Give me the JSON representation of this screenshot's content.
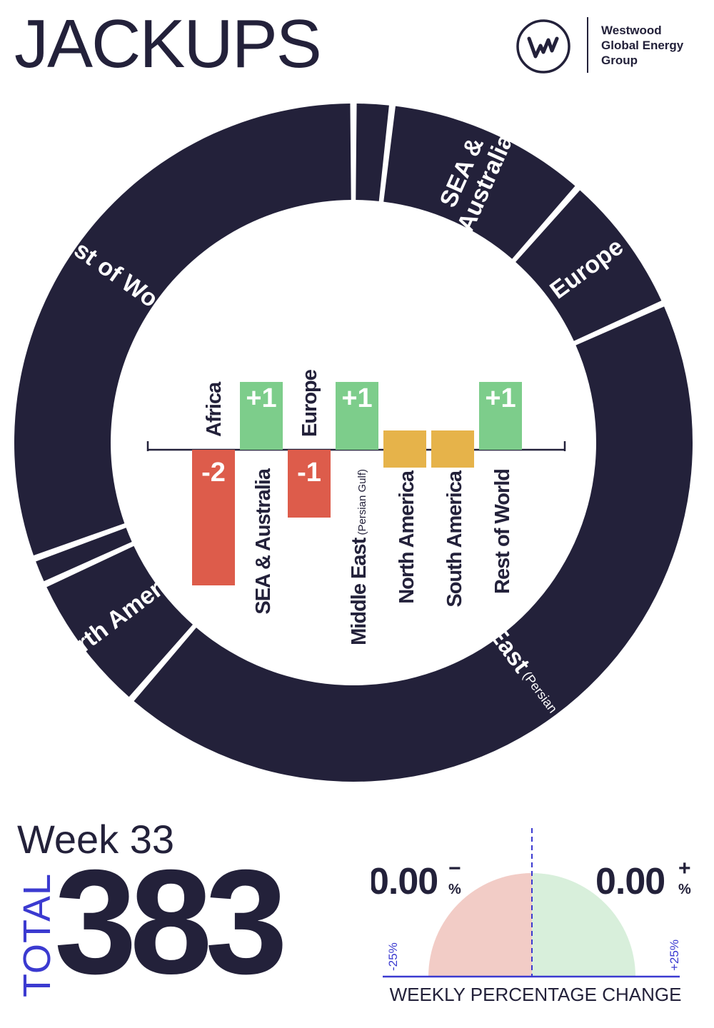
{
  "title": "JACKUPS",
  "brand": {
    "name_lines": [
      "Westwood",
      "Global Energy",
      "Group"
    ],
    "logo_icon": "w-monogram-circle-icon"
  },
  "week": "Week 33",
  "total_label": "TOTAL",
  "total_value": "383",
  "colors": {
    "navy": "#23213a",
    "increase": "#7dcd8b",
    "decrease": "#dd5c4b",
    "no_change": "#e6b34a",
    "accent": "#3b3ad0",
    "gauge_negative": "#f2ccc6",
    "gauge_positive": "#d8efdb"
  },
  "chart_data": [
    {
      "type": "pie",
      "variant": "donut",
      "description_of_regions": "Jackup rig count share by region",
      "segments": [
        {
          "label": "Africa",
          "value": 7
        },
        {
          "label": "SEA & Australia",
          "value": 37
        },
        {
          "label": "Europe",
          "value": 26
        },
        {
          "label": "Middle East",
          "sublabel": "(Persian Gulf & Red Sea)",
          "value": 165
        },
        {
          "label": "North America",
          "value": 26
        },
        {
          "label": "South America",
          "value": 5
        },
        {
          "label": "Rest of World",
          "value": 117
        }
      ]
    },
    {
      "type": "bar",
      "description": "Weekly change by region",
      "categories": [
        "Africa",
        "SEA & Australia",
        "Europe",
        "Middle East",
        "North America",
        "South America",
        "Rest of World"
      ],
      "category_sublabels": [
        "",
        "",
        "",
        "(Persian Gulf)",
        "",
        "",
        ""
      ],
      "values": [
        -2,
        1,
        -1,
        1,
        0,
        0,
        1
      ],
      "value_labels": [
        "-2",
        "+1",
        "-1",
        "+1",
        "",
        "",
        "+1"
      ]
    },
    {
      "type": "gauge",
      "label": "WEEKLY PERCENTAGE CHANGE",
      "negative": {
        "value": "0.00",
        "sign": "−",
        "unit": "%",
        "min_label": "-25%"
      },
      "positive": {
        "value": "0.00",
        "sign": "+",
        "unit": "%",
        "max_label": "+25%"
      }
    }
  ]
}
